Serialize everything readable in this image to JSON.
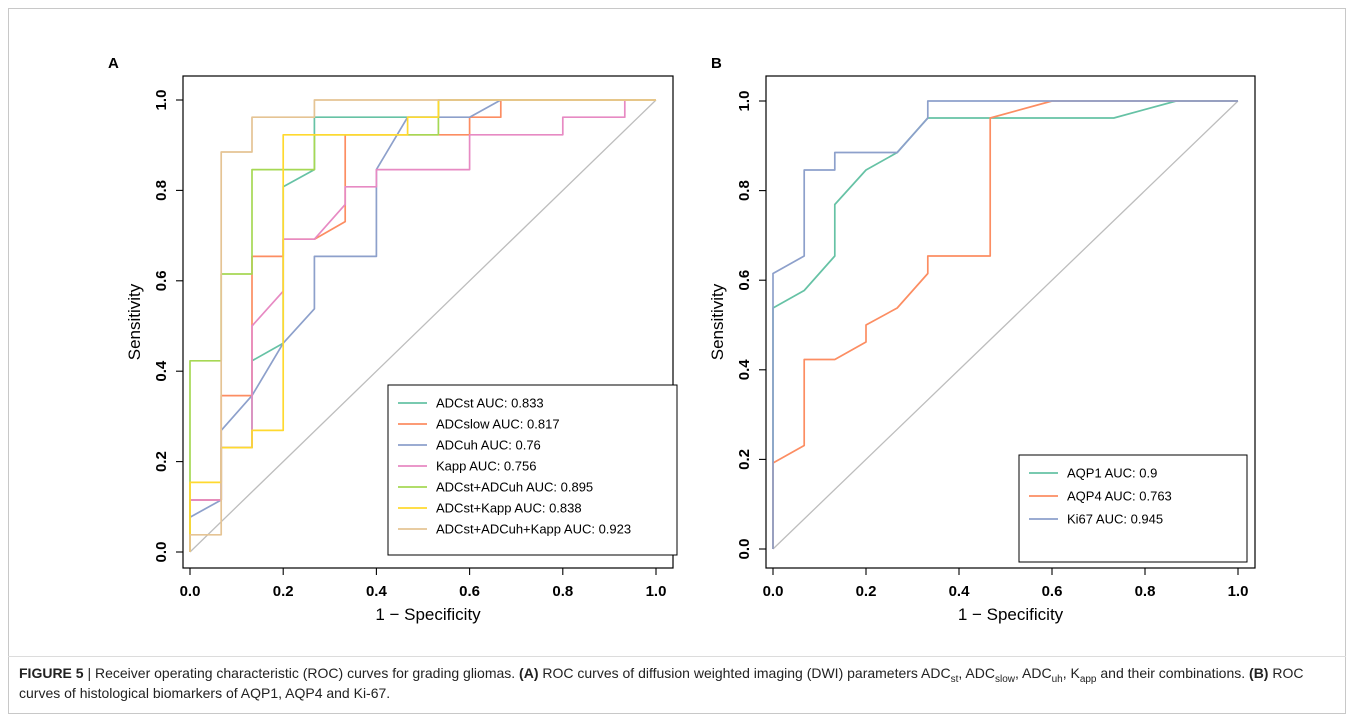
{
  "chart_data": [
    {
      "panel": "A",
      "type": "line",
      "xlabel": "1 − Specificity",
      "ylabel": "Sensitivity",
      "xlim": [
        0,
        1
      ],
      "ylim": [
        0,
        1
      ],
      "xticks": [
        "0.0",
        "0.2",
        "0.4",
        "0.6",
        "0.8",
        "1.0"
      ],
      "yticks": [
        "0.0",
        "0.2",
        "0.4",
        "0.6",
        "0.8",
        "1.0"
      ],
      "legend_position": "bottom-right",
      "diagonal_reference": true,
      "series": [
        {
          "name": "ADCst AUC: 0.833",
          "color": "#66c2a5",
          "points": [
            [
              0,
              0
            ],
            [
              0,
              0.115
            ],
            [
              0.067,
              0.115
            ],
            [
              0.067,
              0.231
            ],
            [
              0.133,
              0.231
            ],
            [
              0.133,
              0.423
            ],
            [
              0.2,
              0.462
            ],
            [
              0.2,
              0.808
            ],
            [
              0.267,
              0.846
            ],
            [
              0.267,
              0.962
            ],
            [
              0.533,
              0.962
            ],
            [
              0.533,
              1
            ],
            [
              1,
              1
            ]
          ]
        },
        {
          "name": "ADCslow AUC: 0.817",
          "color": "#fc8d62",
          "points": [
            [
              0,
              0
            ],
            [
              0,
              0.115
            ],
            [
              0.067,
              0.115
            ],
            [
              0.067,
              0.346
            ],
            [
              0.133,
              0.346
            ],
            [
              0.133,
              0.654
            ],
            [
              0.2,
              0.654
            ],
            [
              0.2,
              0.692
            ],
            [
              0.267,
              0.692
            ],
            [
              0.333,
              0.731
            ],
            [
              0.333,
              0.923
            ],
            [
              0.6,
              0.923
            ],
            [
              0.6,
              0.962
            ],
            [
              0.667,
              0.962
            ],
            [
              0.667,
              1
            ],
            [
              1,
              1
            ]
          ]
        },
        {
          "name": "ADCuh AUC: 0.76",
          "color": "#8da0cb",
          "points": [
            [
              0,
              0
            ],
            [
              0,
              0.077
            ],
            [
              0.067,
              0.115
            ],
            [
              0.067,
              0.269
            ],
            [
              0.133,
              0.346
            ],
            [
              0.2,
              0.462
            ],
            [
              0.267,
              0.538
            ],
            [
              0.267,
              0.654
            ],
            [
              0.4,
              0.654
            ],
            [
              0.4,
              0.846
            ],
            [
              0.467,
              0.962
            ],
            [
              0.6,
              0.962
            ],
            [
              0.667,
              1
            ],
            [
              1,
              1
            ]
          ]
        },
        {
          "name": "Kapp AUC: 0.756",
          "color": "#e78ac3",
          "points": [
            [
              0,
              0
            ],
            [
              0,
              0.115
            ],
            [
              0.067,
              0.115
            ],
            [
              0.067,
              0.231
            ],
            [
              0.133,
              0.231
            ],
            [
              0.133,
              0.5
            ],
            [
              0.2,
              0.577
            ],
            [
              0.2,
              0.692
            ],
            [
              0.267,
              0.692
            ],
            [
              0.333,
              0.769
            ],
            [
              0.333,
              0.808
            ],
            [
              0.4,
              0.808
            ],
            [
              0.4,
              0.846
            ],
            [
              0.6,
              0.846
            ],
            [
              0.6,
              0.923
            ],
            [
              0.8,
              0.923
            ],
            [
              0.8,
              0.962
            ],
            [
              0.933,
              0.962
            ],
            [
              0.933,
              1
            ],
            [
              1,
              1
            ]
          ]
        },
        {
          "name": "ADCst+ADCuh AUC: 0.895",
          "color": "#a6d854",
          "points": [
            [
              0,
              0
            ],
            [
              0,
              0.423
            ],
            [
              0.067,
              0.423
            ],
            [
              0.067,
              0.615
            ],
            [
              0.133,
              0.615
            ],
            [
              0.133,
              0.846
            ],
            [
              0.267,
              0.846
            ],
            [
              0.267,
              0.923
            ],
            [
              0.533,
              0.923
            ],
            [
              0.533,
              1
            ],
            [
              1,
              1
            ]
          ]
        },
        {
          "name": "ADCst+Kapp AUC: 0.838",
          "color": "#ffd92f",
          "points": [
            [
              0,
              0
            ],
            [
              0,
              0.154
            ],
            [
              0.067,
              0.154
            ],
            [
              0.067,
              0.231
            ],
            [
              0.133,
              0.231
            ],
            [
              0.133,
              0.269
            ],
            [
              0.2,
              0.269
            ],
            [
              0.2,
              0.923
            ],
            [
              0.467,
              0.923
            ],
            [
              0.467,
              0.962
            ],
            [
              0.533,
              0.962
            ],
            [
              0.533,
              1
            ],
            [
              1,
              1
            ]
          ]
        },
        {
          "name": "ADCst+ADCuh+Kapp AUC: 0.923",
          "color": "#e5c494",
          "points": [
            [
              0,
              0
            ],
            [
              0,
              0.038
            ],
            [
              0.067,
              0.038
            ],
            [
              0.067,
              0.885
            ],
            [
              0.133,
              0.885
            ],
            [
              0.133,
              0.962
            ],
            [
              0.267,
              0.962
            ],
            [
              0.267,
              1
            ],
            [
              1,
              1
            ]
          ]
        }
      ]
    },
    {
      "panel": "B",
      "type": "line",
      "xlabel": "1 − Specificity",
      "ylabel": "Sensitivity",
      "xlim": [
        0,
        1
      ],
      "ylim": [
        0,
        1
      ],
      "xticks": [
        "0.0",
        "0.2",
        "0.4",
        "0.6",
        "0.8",
        "1.0"
      ],
      "yticks": [
        "0.0",
        "0.2",
        "0.4",
        "0.6",
        "0.8",
        "1.0"
      ],
      "legend_position": "bottom-right",
      "diagonal_reference": true,
      "series": [
        {
          "name": "AQP1 AUC: 0.9",
          "color": "#66c2a5",
          "points": [
            [
              0,
              0
            ],
            [
              0,
              0.538
            ],
            [
              0.067,
              0.577
            ],
            [
              0.133,
              0.654
            ],
            [
              0.133,
              0.769
            ],
            [
              0.2,
              0.846
            ],
            [
              0.267,
              0.885
            ],
            [
              0.333,
              0.962
            ],
            [
              0.733,
              0.962
            ],
            [
              0.867,
              1
            ],
            [
              1,
              1
            ]
          ]
        },
        {
          "name": "AQP4 AUC: 0.763",
          "color": "#fc8d62",
          "points": [
            [
              0,
              0
            ],
            [
              0,
              0.192
            ],
            [
              0.067,
              0.231
            ],
            [
              0.067,
              0.423
            ],
            [
              0.133,
              0.423
            ],
            [
              0.2,
              0.462
            ],
            [
              0.2,
              0.5
            ],
            [
              0.267,
              0.538
            ],
            [
              0.333,
              0.615
            ],
            [
              0.333,
              0.654
            ],
            [
              0.467,
              0.654
            ],
            [
              0.467,
              0.962
            ],
            [
              0.6,
              1
            ],
            [
              1,
              1
            ]
          ]
        },
        {
          "name": "Ki67 AUC: 0.945",
          "color": "#8da0cb",
          "points": [
            [
              0,
              0
            ],
            [
              0,
              0.615
            ],
            [
              0.067,
              0.654
            ],
            [
              0.067,
              0.846
            ],
            [
              0.133,
              0.846
            ],
            [
              0.133,
              0.885
            ],
            [
              0.267,
              0.885
            ],
            [
              0.333,
              0.962
            ],
            [
              0.333,
              1
            ],
            [
              1,
              1
            ]
          ]
        }
      ]
    }
  ],
  "caption": {
    "figure_label": "FIGURE 5",
    "separator": " | ",
    "lead": "Receiver operating characteristic (ROC) curves for grading gliomas. ",
    "a_label": "(A)",
    "a_text_1": " ROC curves of diffusion weighted imaging (DWI) parameters ADC",
    "a_sub_1": "st",
    "a_text_2": ", ADC",
    "a_sub_2": "slow",
    "a_text_3": ", ADC",
    "a_sub_3": "uh",
    "a_text_4": ", K",
    "a_sub_4": "app",
    "a_text_5": " and their combinations. ",
    "b_label": "(B)",
    "b_text": " ROC curves of histological biomarkers of AQP1, AQP4 and Ki-67."
  }
}
